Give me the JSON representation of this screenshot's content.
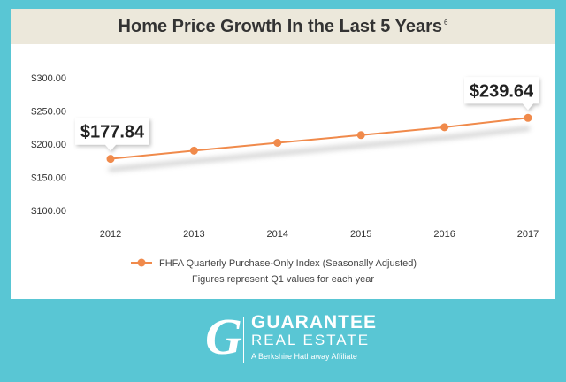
{
  "chart_data": {
    "type": "line",
    "title": "Home Price Growth In the Last 5 Years",
    "title_footnote": "6",
    "categories": [
      "2012",
      "2013",
      "2014",
      "2015",
      "2016",
      "2017"
    ],
    "series": [
      {
        "name": "FHFA Quarterly Purchase-Only Index (Seasonally Adjusted)",
        "values": [
          177.84,
          190.2,
          202.0,
          213.6,
          225.5,
          239.64
        ],
        "color": "#f08a4b"
      }
    ],
    "y_ticks": [
      "$300.00",
      "$250.00",
      "$200.00",
      "$150.00",
      "$100.00"
    ],
    "y_tick_values": [
      300,
      250,
      200,
      150,
      100
    ],
    "ylim": [
      100,
      300
    ],
    "grid": false,
    "callouts": [
      {
        "category": "2012",
        "label": "$177.84"
      },
      {
        "category": "2017",
        "label": "$239.64"
      }
    ],
    "legend_position": "bottom",
    "note": "Figures represent Q1 values for each year"
  },
  "logo": {
    "mark": "G",
    "name": "GUARANTEE",
    "sub": "REAL ESTATE",
    "tagline": "A Berkshire Hathaway Affiliate"
  },
  "colors": {
    "background": "#59c6d4",
    "title_band": "#ece8db",
    "line": "#f08a4b"
  }
}
